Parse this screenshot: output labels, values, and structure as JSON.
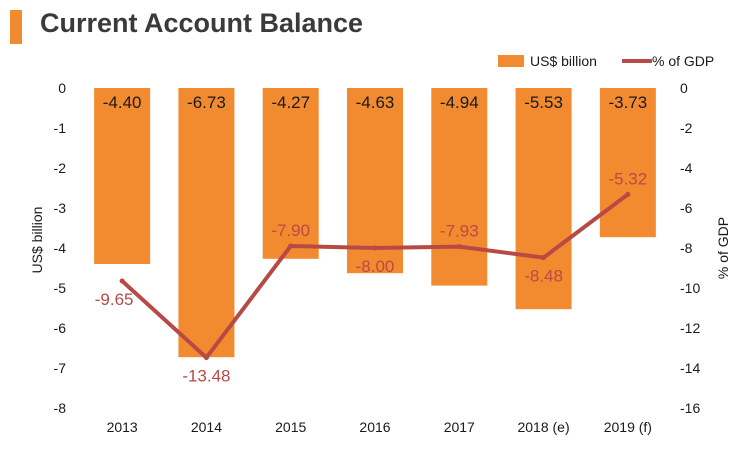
{
  "title": "Current Account Balance",
  "colors": {
    "bar": "#f28b30",
    "line": "#b84a45",
    "accent": "#f28b30"
  },
  "chart_data": {
    "type": "bar",
    "categories": [
      "2013",
      "2014",
      "2015",
      "2016",
      "2017",
      "2018 (e)",
      "2019 (f)"
    ],
    "series": [
      {
        "name": "US$ billion",
        "type": "bar",
        "axis": "left",
        "values": [
          -4.4,
          -6.73,
          -4.27,
          -4.63,
          -4.94,
          -5.53,
          -3.73
        ],
        "labels": [
          "-4.40",
          "-6.73",
          "-4.27",
          "-4.63",
          "-4.94",
          "-5.53",
          "-3.73"
        ]
      },
      {
        "name": "% of GDP",
        "type": "line",
        "axis": "right",
        "values": [
          -9.65,
          -13.48,
          -7.9,
          -8.0,
          -7.93,
          -8.48,
          -5.32
        ],
        "labels": [
          "-9.65",
          "-13.48",
          "-7.90",
          "-8.00",
          "-7.93",
          "-8.48",
          "-5.32"
        ]
      }
    ],
    "ylabel": "US$ billion",
    "y2label": "% of GDP",
    "ylim": [
      -8,
      0
    ],
    "y2lim": [
      -16,
      0
    ],
    "yticks": [
      "0",
      "-1",
      "-2",
      "-3",
      "-4",
      "-5",
      "-6",
      "-7",
      "-8"
    ],
    "y2ticks": [
      "0",
      "-2",
      "-4",
      "-6",
      "-8",
      "-10",
      "-12",
      "-14",
      "-16"
    ],
    "legend": [
      "US$ billion",
      "% of GDP"
    ],
    "legend_position": "top-right",
    "grid": false
  }
}
